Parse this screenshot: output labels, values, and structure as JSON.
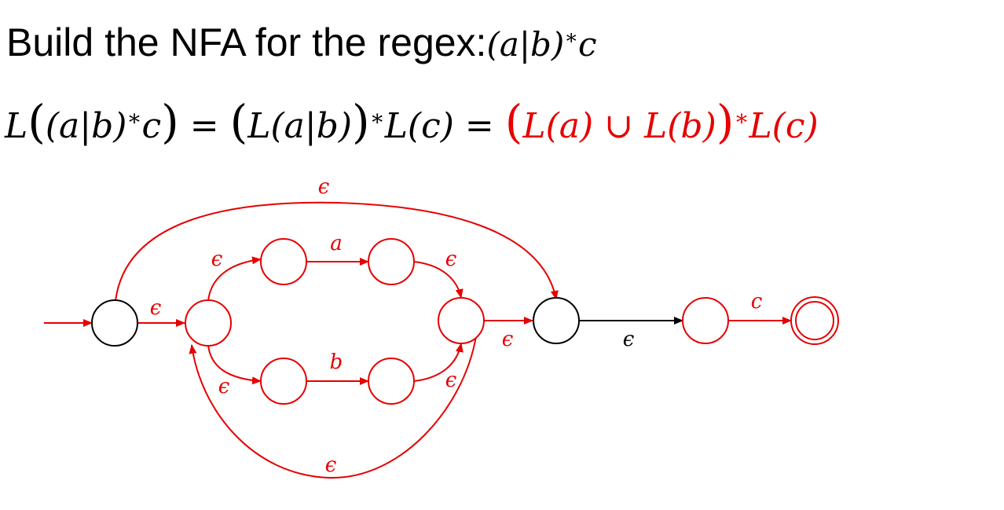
{
  "title": {
    "prefix": "Build the NFA for the regex:",
    "regex": "(a|b)*c"
  },
  "formula": {
    "lhs": "L((a|b)*c)",
    "middle": "(L(a|b))*L(c)",
    "rhs": "(L(a) ∪ L(b))*L(c)"
  },
  "colors": {
    "black": "#000000",
    "red": "#e60000"
  },
  "nfa": {
    "labels": {
      "top_epsilon": "ϵ",
      "start_to_split": "ϵ",
      "split_to_a": "ϵ",
      "a_symbol": "a",
      "after_a": "ϵ",
      "split_to_b": "ϵ",
      "b_symbol": "b",
      "after_b": "ϵ",
      "join_to_mid": "ϵ",
      "loop_back": "ϵ",
      "mid_to_c": "ϵ",
      "c_symbol": "c"
    }
  }
}
